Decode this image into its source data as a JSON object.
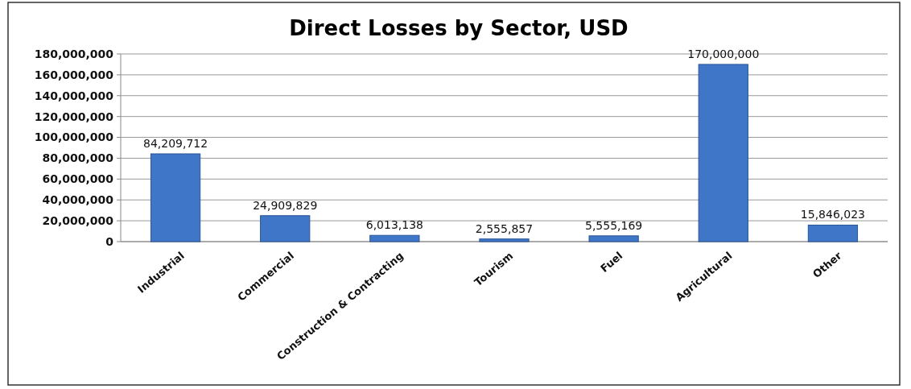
{
  "chart_data": {
    "type": "bar",
    "title": "Direct Losses by Sector, USD",
    "categories": [
      "Industrial",
      "Commercial",
      "Construction & Contracting",
      "Tourism",
      "Fuel",
      "Agricultural",
      "Other"
    ],
    "values": [
      84209712,
      24909829,
      6013138,
      2555857,
      5555169,
      170000000,
      15846023
    ],
    "value_labels": [
      "84,209,712",
      "24,909,829",
      "6,013,138",
      "2,555,857",
      "5,555,169",
      "170,000,000",
      "15,846,023"
    ],
    "color": "#3f76c8",
    "ylim": [
      0,
      180000000
    ],
    "yticks": [
      {
        "value": 0,
        "label": "0"
      },
      {
        "value": 20000000,
        "label": "20,000,000"
      },
      {
        "value": 40000000,
        "label": "40,000,000"
      },
      {
        "value": 60000000,
        "label": "60,000,000"
      },
      {
        "value": 80000000,
        "label": "80,000,000"
      },
      {
        "value": 100000000,
        "label": "100,000,000"
      },
      {
        "value": 120000000,
        "label": "120,000,000"
      },
      {
        "value": 140000000,
        "label": "140,000,000"
      },
      {
        "value": 160000000,
        "label": "160,000,000"
      },
      {
        "value": 180000000,
        "label": "180,000,000"
      }
    ],
    "grid": "y"
  }
}
